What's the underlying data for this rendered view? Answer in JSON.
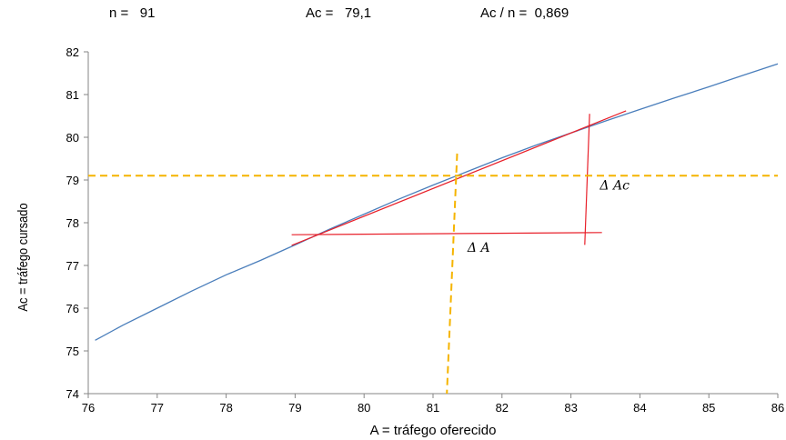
{
  "header": {
    "n_label": "n =",
    "n_value": "91",
    "ac_label": "Ac =",
    "ac_value": "79,1",
    "ratio_label": "Ac / n =",
    "ratio_value": "0,869"
  },
  "colors": {
    "curve": "#4a7ebb",
    "tangent": "#e8202a",
    "guide": "#f5b400",
    "axis": "#868686",
    "grid": "#d9d9d9"
  },
  "chart_data": {
    "type": "line",
    "title": "",
    "xlabel": "A = tráfego oferecido",
    "ylabel": "Ac = tráfego cursado",
    "xlim": [
      76,
      86
    ],
    "ylim": [
      74,
      82
    ],
    "x_ticks": [
      "76",
      "77",
      "78",
      "79",
      "80",
      "81",
      "82",
      "83",
      "84",
      "85",
      "86"
    ],
    "y_ticks": [
      "74",
      "75",
      "76",
      "77",
      "78",
      "79",
      "80",
      "81",
      "82"
    ],
    "grid": false,
    "series": [
      {
        "style": "curve",
        "x": [
          76.1,
          76.5,
          77.0,
          77.5,
          78.0,
          78.5,
          79.0,
          79.5,
          80.0,
          80.5,
          81.0,
          81.5,
          82.0,
          82.5,
          83.0,
          83.5,
          84.0,
          84.5,
          85.0,
          85.5,
          86.0
        ],
        "y": [
          75.25,
          75.6,
          76.0,
          76.4,
          76.78,
          77.12,
          77.48,
          77.85,
          78.2,
          78.55,
          78.88,
          79.2,
          79.52,
          79.82,
          80.1,
          80.38,
          80.65,
          80.92,
          81.18,
          81.45,
          81.72
        ]
      },
      {
        "style": "tangent",
        "x": [
          78.95,
          83.8
        ],
        "y": [
          77.47,
          80.62
        ]
      },
      {
        "style": "tangent",
        "x": [
          78.95,
          83.45
        ],
        "y": [
          77.72,
          77.77
        ]
      },
      {
        "style": "tangent",
        "x": [
          83.2,
          83.27
        ],
        "y": [
          77.48,
          80.55
        ]
      },
      {
        "style": "guide",
        "x": [
          76,
          86
        ],
        "y": [
          79.1,
          79.1
        ]
      },
      {
        "style": "guide",
        "x": [
          81.35,
          81.2
        ],
        "y": [
          79.62,
          74
        ]
      }
    ],
    "annotations": [
      {
        "text": "Δ Ac",
        "x": 83.42,
        "y": 78.78
      },
      {
        "text": "Δ A",
        "x": 81.5,
        "y": 77.32
      }
    ]
  }
}
